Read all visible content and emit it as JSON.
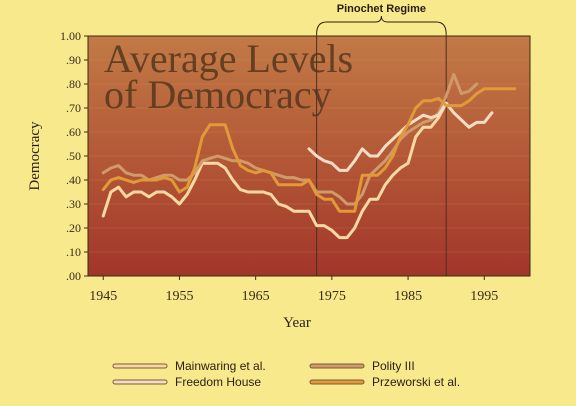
{
  "chart_data": {
    "type": "line",
    "title_lines": [
      "Average Levels",
      "of Democracy"
    ],
    "xlabel": "Year",
    "ylabel": "Democracy",
    "xlim": [
      1943,
      2001
    ],
    "ylim": [
      0,
      1
    ],
    "x_ticks": [
      1945,
      1955,
      1965,
      1975,
      1985,
      1995
    ],
    "y_ticks": [
      0,
      0.1,
      0.2,
      0.3,
      0.4,
      0.5,
      0.6,
      0.7,
      0.8,
      0.9,
      1.0
    ],
    "y_tick_labels": [
      ".00",
      ".10",
      ".20",
      ".30",
      ".40",
      ".50",
      ".60",
      ".70",
      ".80",
      ".90",
      "1.00"
    ],
    "annotation": {
      "label": "Pinochet Regime",
      "start": 1973,
      "end": 1990
    },
    "legend_position": "bottom",
    "series": [
      {
        "name": "Mainwaring et al.",
        "color": "#f9d9a3",
        "x": [
          1945,
          1946,
          1947,
          1948,
          1949,
          1950,
          1951,
          1952,
          1953,
          1954,
          1955,
          1956,
          1957,
          1958,
          1959,
          1960,
          1961,
          1962,
          1963,
          1964,
          1965,
          1966,
          1967,
          1968,
          1969,
          1970,
          1971,
          1972,
          1973,
          1974,
          1975,
          1976,
          1977,
          1978,
          1979,
          1980,
          1981,
          1982,
          1983,
          1984,
          1985,
          1986,
          1987,
          1988,
          1989,
          1990
        ],
        "values": [
          0.25,
          0.35,
          0.37,
          0.33,
          0.35,
          0.35,
          0.33,
          0.35,
          0.35,
          0.33,
          0.3,
          0.34,
          0.4,
          0.47,
          0.47,
          0.47,
          0.45,
          0.4,
          0.36,
          0.35,
          0.35,
          0.35,
          0.34,
          0.3,
          0.29,
          0.27,
          0.27,
          0.27,
          0.21,
          0.21,
          0.19,
          0.16,
          0.16,
          0.2,
          0.27,
          0.32,
          0.32,
          0.38,
          0.42,
          0.45,
          0.47,
          0.58,
          0.62,
          0.62,
          0.66,
          0.72
        ]
      },
      {
        "name": "Polity III",
        "color": "#d19a6a",
        "x": [
          1945,
          1946,
          1947,
          1948,
          1949,
          1950,
          1951,
          1952,
          1953,
          1954,
          1955,
          1956,
          1957,
          1958,
          1959,
          1960,
          1961,
          1962,
          1963,
          1964,
          1965,
          1966,
          1967,
          1968,
          1969,
          1970,
          1971,
          1972,
          1973,
          1974,
          1975,
          1976,
          1977,
          1978,
          1979,
          1980,
          1981,
          1982,
          1983,
          1984,
          1985,
          1986,
          1987,
          1988,
          1989,
          1990,
          1991,
          1992,
          1993,
          1994
        ],
        "values": [
          0.43,
          0.45,
          0.46,
          0.43,
          0.42,
          0.42,
          0.4,
          0.41,
          0.42,
          0.42,
          0.4,
          0.4,
          0.43,
          0.48,
          0.49,
          0.5,
          0.49,
          0.48,
          0.48,
          0.47,
          0.45,
          0.44,
          0.43,
          0.42,
          0.41,
          0.41,
          0.4,
          0.4,
          0.35,
          0.35,
          0.35,
          0.33,
          0.3,
          0.3,
          0.34,
          0.42,
          0.45,
          0.48,
          0.52,
          0.57,
          0.6,
          0.62,
          0.64,
          0.65,
          0.68,
          0.75,
          0.84,
          0.76,
          0.77,
          0.8
        ]
      },
      {
        "name": "Freedom House",
        "color": "#f7dcc5",
        "x": [
          1972,
          1973,
          1974,
          1975,
          1976,
          1977,
          1978,
          1979,
          1980,
          1981,
          1982,
          1983,
          1984,
          1985,
          1986,
          1987,
          1988,
          1989,
          1990,
          1991,
          1992,
          1993,
          1994,
          1995,
          1996
        ],
        "values": [
          0.53,
          0.5,
          0.48,
          0.47,
          0.44,
          0.44,
          0.48,
          0.53,
          0.5,
          0.5,
          0.54,
          0.57,
          0.6,
          0.63,
          0.65,
          0.67,
          0.66,
          0.67,
          0.72,
          0.68,
          0.65,
          0.62,
          0.64,
          0.64,
          0.68
        ]
      },
      {
        "name": "Przeworski et al.",
        "color": "#e09a38",
        "x": [
          1945,
          1946,
          1947,
          1948,
          1949,
          1950,
          1951,
          1952,
          1953,
          1954,
          1955,
          1956,
          1957,
          1958,
          1959,
          1960,
          1961,
          1962,
          1963,
          1964,
          1965,
          1966,
          1967,
          1968,
          1969,
          1970,
          1971,
          1972,
          1973,
          1974,
          1975,
          1976,
          1977,
          1978,
          1979,
          1980,
          1981,
          1982,
          1983,
          1984,
          1985,
          1986,
          1987,
          1988,
          1989,
          1990,
          1991,
          1992,
          1993,
          1994,
          1995,
          1996,
          1997,
          1998,
          1999
        ],
        "values": [
          0.36,
          0.4,
          0.41,
          0.4,
          0.39,
          0.4,
          0.4,
          0.4,
          0.41,
          0.4,
          0.35,
          0.37,
          0.45,
          0.58,
          0.63,
          0.63,
          0.63,
          0.53,
          0.46,
          0.44,
          0.43,
          0.44,
          0.43,
          0.38,
          0.38,
          0.38,
          0.38,
          0.4,
          0.34,
          0.32,
          0.32,
          0.27,
          0.27,
          0.27,
          0.42,
          0.42,
          0.42,
          0.45,
          0.5,
          0.58,
          0.63,
          0.7,
          0.73,
          0.73,
          0.74,
          0.71,
          0.71,
          0.71,
          0.73,
          0.76,
          0.78,
          0.78,
          0.78,
          0.78,
          0.78
        ]
      }
    ]
  }
}
